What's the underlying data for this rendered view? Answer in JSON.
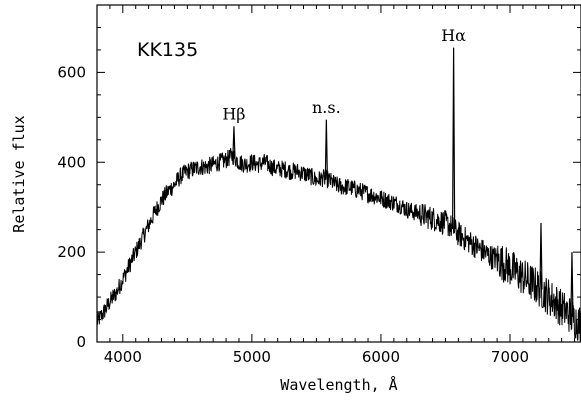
{
  "chart_data": {
    "type": "line",
    "title": "KK135",
    "xlabel": "Wavelength, Å",
    "ylabel": "Relative flux",
    "xlim": [
      3800,
      7550
    ],
    "ylim": [
      0,
      750
    ],
    "xticks": [
      4000,
      5000,
      6000,
      7000
    ],
    "yticks": [
      0,
      200,
      400,
      600
    ],
    "grid": false,
    "series": [
      {
        "points": [
          [
            3800,
            45
          ],
          [
            3850,
            65
          ],
          [
            3900,
            90
          ],
          [
            3950,
            110
          ],
          [
            4000,
            140
          ],
          [
            4050,
            170
          ],
          [
            4100,
            200
          ],
          [
            4150,
            230
          ],
          [
            4200,
            260
          ],
          [
            4250,
            290
          ],
          [
            4300,
            315
          ],
          [
            4350,
            335
          ],
          [
            4400,
            350
          ],
          [
            4450,
            370
          ],
          [
            4500,
            380
          ],
          [
            4550,
            385
          ],
          [
            4600,
            390
          ],
          [
            4650,
            390
          ],
          [
            4700,
            395
          ],
          [
            4750,
            400
          ],
          [
            4800,
            405
          ],
          [
            4850,
            415
          ],
          [
            4900,
            400
          ],
          [
            4950,
            395
          ],
          [
            5000,
            400
          ],
          [
            5050,
            395
          ],
          [
            5100,
            400
          ],
          [
            5150,
            390
          ],
          [
            5200,
            385
          ],
          [
            5250,
            385
          ],
          [
            5300,
            380
          ],
          [
            5350,
            380
          ],
          [
            5400,
            375
          ],
          [
            5450,
            370
          ],
          [
            5500,
            360
          ],
          [
            5550,
            365
          ],
          [
            5600,
            360
          ],
          [
            5650,
            350
          ],
          [
            5700,
            345
          ],
          [
            5750,
            345
          ],
          [
            5800,
            340
          ],
          [
            5850,
            335
          ],
          [
            5900,
            330
          ],
          [
            5950,
            325
          ],
          [
            6000,
            320
          ],
          [
            6050,
            315
          ],
          [
            6100,
            310
          ],
          [
            6150,
            305
          ],
          [
            6200,
            295
          ],
          [
            6250,
            290
          ],
          [
            6300,
            285
          ],
          [
            6350,
            280
          ],
          [
            6400,
            275
          ],
          [
            6450,
            270
          ],
          [
            6500,
            265
          ],
          [
            6550,
            255
          ],
          [
            6600,
            240
          ],
          [
            6650,
            230
          ],
          [
            6700,
            220
          ],
          [
            6750,
            210
          ],
          [
            6800,
            200
          ],
          [
            6850,
            190
          ],
          [
            6900,
            185
          ],
          [
            6950,
            175
          ],
          [
            7000,
            165
          ],
          [
            7050,
            155
          ],
          [
            7100,
            145
          ],
          [
            7150,
            135
          ],
          [
            7200,
            125
          ],
          [
            7250,
            115
          ],
          [
            7300,
            100
          ],
          [
            7350,
            90
          ],
          [
            7400,
            75
          ],
          [
            7450,
            65
          ],
          [
            7500,
            50
          ],
          [
            7550,
            40
          ]
        ],
        "lines": [
          [
            4861,
            480
          ],
          [
            5577,
            495
          ],
          [
            6563,
            655
          ],
          [
            7240,
            265
          ],
          [
            7480,
            200
          ]
        ]
      }
    ],
    "annotations": [
      {
        "text": "Hβ",
        "x": 4861,
        "y": 495
      },
      {
        "text": "n.s.",
        "x": 5577,
        "y": 510
      },
      {
        "text": "Hα",
        "x": 6563,
        "y": 670
      }
    ]
  }
}
